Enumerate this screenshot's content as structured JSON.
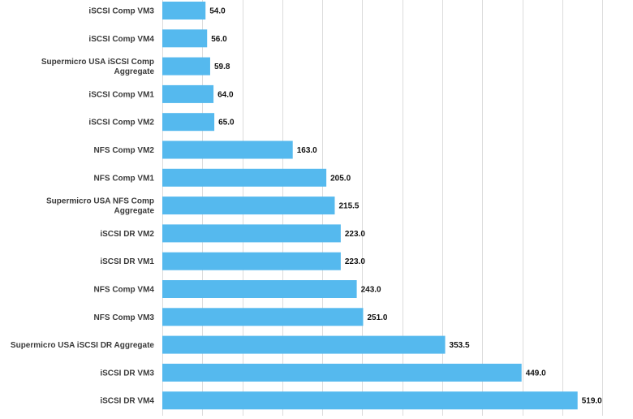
{
  "chart_data": {
    "type": "bar",
    "orientation": "horizontal",
    "title": "",
    "xlabel": "",
    "ylabel": "",
    "xlim": [
      0,
      570
    ],
    "grid": true,
    "legend": "none",
    "bar_color": "#55b9ee",
    "grid_color": "#dcdcdc",
    "categories": [
      [
        "iSCSI Comp VM3"
      ],
      [
        "iSCSI Comp VM4"
      ],
      [
        "Supermicro USA iSCSI Comp",
        "Aggregate"
      ],
      [
        "iSCSI Comp VM1"
      ],
      [
        "iSCSI Comp VM2"
      ],
      [
        "NFS Comp VM2"
      ],
      [
        "NFS Comp VM1"
      ],
      [
        "Supermicro USA NFS Comp",
        "Aggregate"
      ],
      [
        "iSCSI DR VM2"
      ],
      [
        "iSCSI DR VM1"
      ],
      [
        "NFS Comp VM4"
      ],
      [
        "NFS Comp VM3"
      ],
      [
        "Supermicro USA iSCSI DR Aggregate"
      ],
      [
        "iSCSI DR VM3"
      ],
      [
        "iSCSI DR VM4"
      ]
    ],
    "values": [
      54.0,
      56.0,
      59.8,
      64.0,
      65.0,
      163.0,
      205.0,
      215.5,
      223.0,
      223.0,
      243.0,
      251.0,
      353.5,
      449.0,
      519.0
    ],
    "value_labels": [
      "54.0",
      "56.0",
      "59.8",
      "64.0",
      "65.0",
      "163.0",
      "205.0",
      "215.5",
      "223.0",
      "223.0",
      "243.0",
      "251.0",
      "353.5",
      "449.0",
      "519.0"
    ]
  }
}
